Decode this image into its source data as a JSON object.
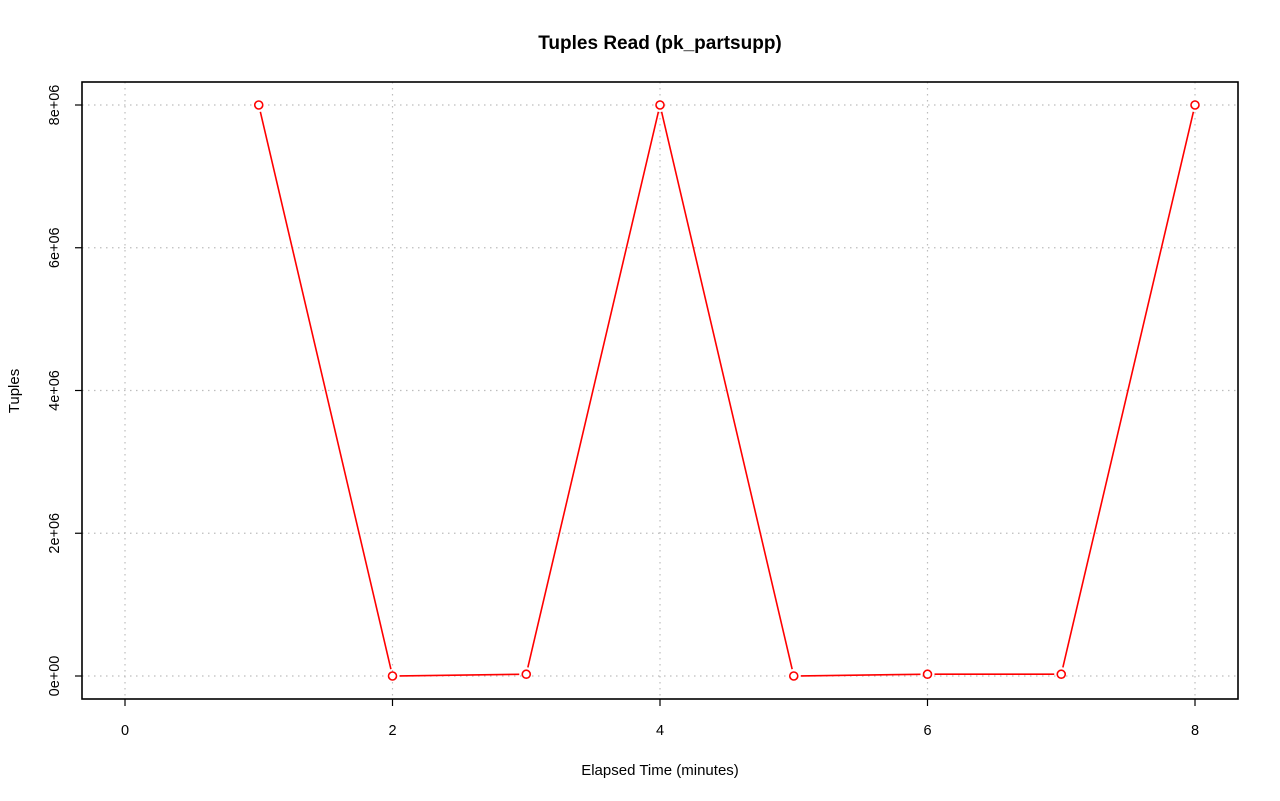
{
  "chart_data": {
    "type": "line",
    "title": "Tuples Read (pk_partsupp)",
    "xlabel": "Elapsed Time (minutes)",
    "ylabel": "Tuples",
    "xlim": [
      0,
      8
    ],
    "ylim": [
      0,
      8000000
    ],
    "x_ticks": [
      0,
      2,
      4,
      6,
      8
    ],
    "x_tick_labels": [
      "0",
      "2",
      "4",
      "6",
      "8"
    ],
    "y_ticks": [
      0,
      2000000,
      4000000,
      6000000,
      8000000
    ],
    "y_tick_labels": [
      "0e+00",
      "2e+06",
      "4e+06",
      "6e+06",
      "8e+06"
    ],
    "grid": true,
    "series": [
      {
        "color": "#ff0000",
        "marker": "open-circle",
        "x": [
          1,
          2,
          3,
          4,
          5,
          6,
          7,
          8
        ],
        "y": [
          8000000,
          0,
          25000,
          8000000,
          0,
          25000,
          25000,
          8000000
        ]
      }
    ]
  }
}
